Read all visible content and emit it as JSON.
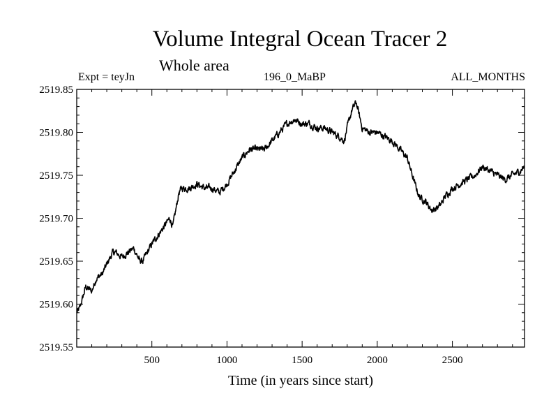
{
  "header": {
    "title": "Volume Integral Ocean Tracer 2",
    "subtitle": "Whole area",
    "experiment": "Expt = teyJn",
    "run_label": "196_0_MaBP",
    "months": "ALL_MONTHS"
  },
  "chart_data": {
    "type": "line",
    "title": "Volume Integral Ocean Tracer 2",
    "xlabel": "Time (in years since start)",
    "ylabel": "",
    "xlim": [
      0,
      2980
    ],
    "ylim": [
      2519.55,
      2519.85
    ],
    "xticks": [
      500,
      1000,
      1500,
      2000,
      2500
    ],
    "yticks": [
      2519.55,
      2519.6,
      2519.65,
      2519.7,
      2519.75,
      2519.8,
      2519.85
    ],
    "ytick_labels": [
      "2519.55",
      "2519.60",
      "2519.65",
      "2519.70",
      "2519.75",
      "2519.80",
      "2519.85"
    ],
    "grid": false,
    "series": [
      {
        "name": "Volume Integral Ocean Tracer 2",
        "x": [
          0,
          20,
          60,
          100,
          130,
          170,
          210,
          240,
          260,
          300,
          340,
          380,
          420,
          440,
          470,
          500,
          540,
          580,
          620,
          640,
          660,
          680,
          700,
          750,
          800,
          850,
          900,
          950,
          1000,
          1050,
          1100,
          1150,
          1200,
          1250,
          1300,
          1350,
          1400,
          1450,
          1500,
          1550,
          1600,
          1650,
          1700,
          1750,
          1780,
          1800,
          1830,
          1860,
          1880,
          1900,
          1950,
          2000,
          2050,
          2100,
          2150,
          2200,
          2250,
          2280,
          2320,
          2360,
          2380,
          2420,
          2450,
          2500,
          2550,
          2600,
          2650,
          2700,
          2750,
          2800,
          2850,
          2900,
          2950,
          2980
        ],
        "values": [
          2519.59,
          2519.595,
          2519.62,
          2519.615,
          2519.63,
          2519.635,
          2519.65,
          2519.66,
          2519.66,
          2519.655,
          2519.66,
          2519.665,
          2519.65,
          2519.65,
          2519.66,
          2519.67,
          2519.68,
          2519.69,
          2519.7,
          2519.69,
          2519.71,
          2519.73,
          2519.735,
          2519.735,
          2519.74,
          2519.735,
          2519.735,
          2519.73,
          2519.74,
          2519.755,
          2519.77,
          2519.78,
          2519.78,
          2519.78,
          2519.79,
          2519.8,
          2519.81,
          2519.815,
          2519.81,
          2519.81,
          2519.805,
          2519.805,
          2519.8,
          2519.795,
          2519.79,
          2519.805,
          2519.825,
          2519.835,
          2519.82,
          2519.805,
          2519.8,
          2519.8,
          2519.795,
          2519.79,
          2519.78,
          2519.77,
          2519.74,
          2519.725,
          2519.72,
          2519.71,
          2519.71,
          2519.715,
          2519.725,
          2519.735,
          2519.74,
          2519.745,
          2519.75,
          2519.76,
          2519.755,
          2519.75,
          2519.745,
          2519.75,
          2519.755,
          2519.76
        ]
      }
    ]
  }
}
